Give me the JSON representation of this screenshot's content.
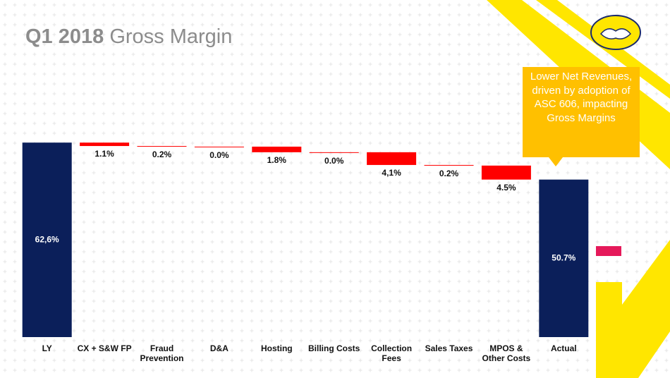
{
  "chart_data": {
    "type": "waterfall",
    "title_lead": "Q1 2018",
    "title": "Gross Margin",
    "categories": [
      "LY",
      "CX + S&W FP",
      "Fraud\nPrevention",
      "D&A",
      "Hosting",
      "Billing Costs",
      "Collection\nFees",
      "Sales Taxes",
      "MPOS &\nOther Costs",
      "Actual"
    ],
    "values": [
      62.6,
      -1.1,
      -0.2,
      0.0,
      -1.8,
      0.0,
      -4.1,
      -0.2,
      -4.5,
      50.7
    ],
    "value_labels": [
      "62,6%",
      "1.1%",
      "0.2%",
      "0.0%",
      "1.8%",
      "0.0%",
      "4,1%",
      "0.2%",
      "4.5%",
      "50.7%"
    ],
    "total_color": "#0b1f5a",
    "decrease_color": "#ff0000",
    "ylim": [
      0,
      70
    ],
    "annotation": "Lower Net Revenues, driven by adoption of ASC 606, impacting Gross Margins"
  }
}
